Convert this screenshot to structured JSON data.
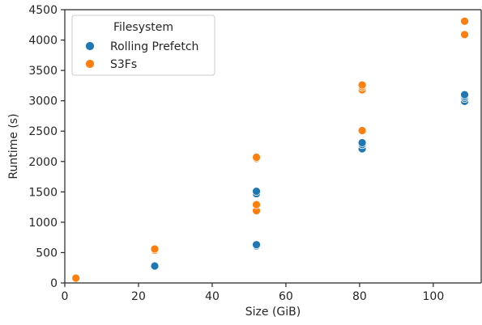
{
  "chart_data": {
    "type": "scatter",
    "xlabel": "Size (GiB)",
    "ylabel": "Runtime (s)",
    "xlim": [
      0,
      113
    ],
    "ylim": [
      0,
      4500
    ],
    "xticks": [
      "0",
      "20",
      "40",
      "60",
      "80",
      "100"
    ],
    "yticks": [
      "0",
      "500",
      "1000",
      "1500",
      "2000",
      "2500",
      "3000",
      "3500",
      "4000",
      "4500"
    ],
    "grid": false,
    "legend": {
      "title": "Filesystem",
      "placement": "top-left"
    },
    "series": [
      {
        "name": "Rolling Prefetch",
        "color": "#1f77b4",
        "points": [
          {
            "x": 3,
            "y": 70
          },
          {
            "x": 24.4,
            "y": 280
          },
          {
            "x": 52,
            "y": 610
          },
          {
            "x": 52,
            "y": 630
          },
          {
            "x": 52,
            "y": 1470
          },
          {
            "x": 52,
            "y": 1510
          },
          {
            "x": 80.7,
            "y": 2210
          },
          {
            "x": 80.7,
            "y": 2280
          },
          {
            "x": 80.7,
            "y": 2310
          },
          {
            "x": 108.5,
            "y": 2990
          },
          {
            "x": 108.5,
            "y": 3040
          },
          {
            "x": 108.5,
            "y": 3070
          },
          {
            "x": 108.5,
            "y": 3100
          }
        ]
      },
      {
        "name": "S3Fs",
        "color": "#ff7f0e",
        "points": [
          {
            "x": 3,
            "y": 80
          },
          {
            "x": 24.4,
            "y": 540
          },
          {
            "x": 24.4,
            "y": 560
          },
          {
            "x": 52,
            "y": 1190
          },
          {
            "x": 52,
            "y": 1290
          },
          {
            "x": 52,
            "y": 2050
          },
          {
            "x": 52,
            "y": 2070
          },
          {
            "x": 80.7,
            "y": 2510
          },
          {
            "x": 80.7,
            "y": 3180
          },
          {
            "x": 80.7,
            "y": 3230
          },
          {
            "x": 80.7,
            "y": 3260
          },
          {
            "x": 108.5,
            "y": 4090
          },
          {
            "x": 108.5,
            "y": 4310
          }
        ]
      }
    ]
  }
}
